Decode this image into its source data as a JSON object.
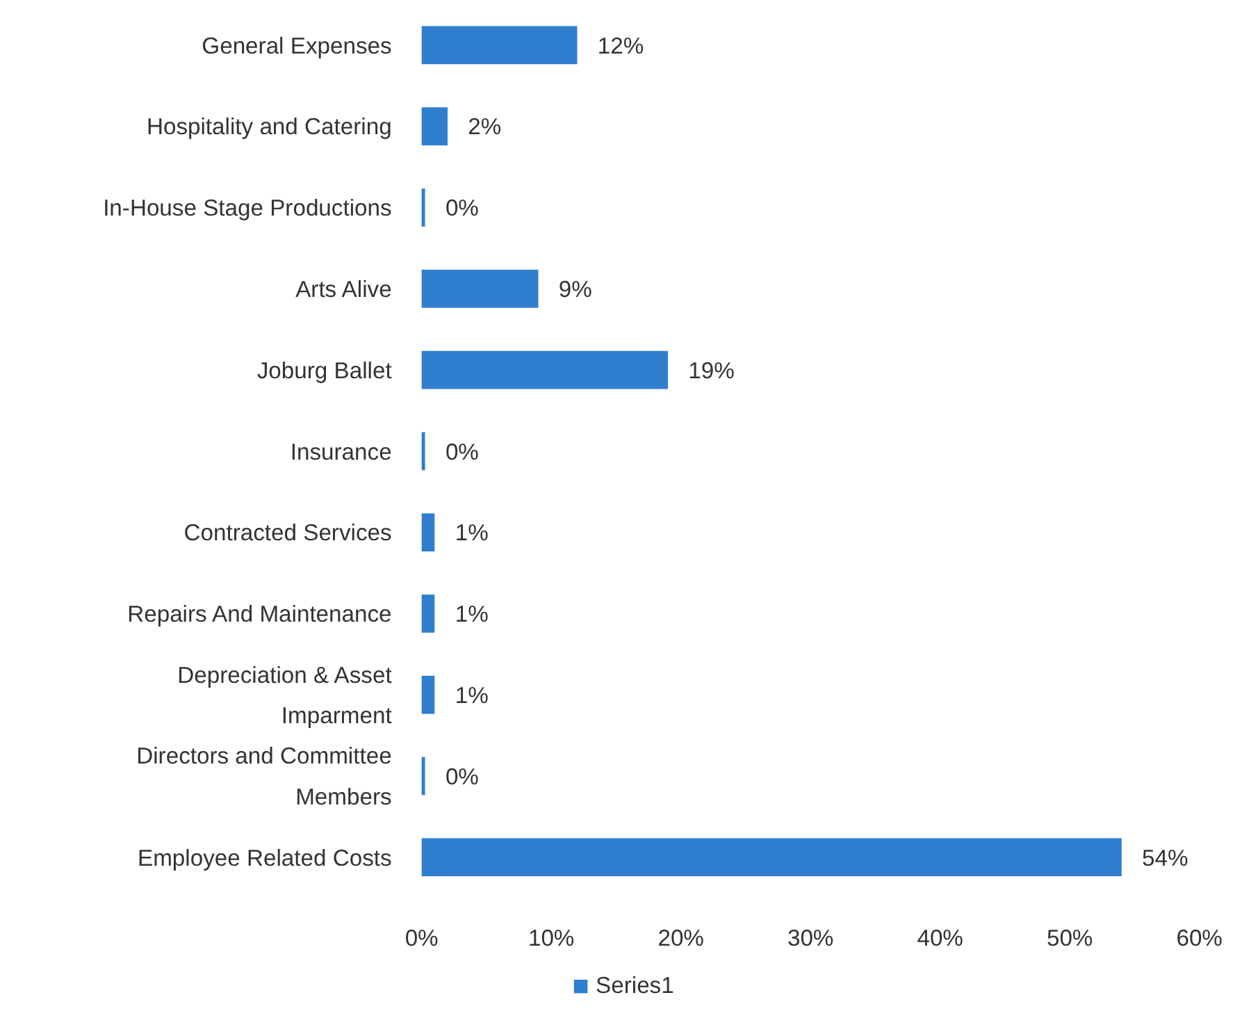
{
  "chart_data": {
    "type": "bar",
    "orientation": "horizontal",
    "categories": [
      "General Expenses",
      "Hospitality and Catering",
      "In-House Stage Productions",
      "Arts Alive",
      "Joburg Ballet",
      "Insurance",
      "Contracted Services",
      "Repairs And Maintenance",
      "Depreciation & Asset Imparment",
      "Directors and Committee Members",
      "Employee Related Costs"
    ],
    "series": [
      {
        "name": "Series1",
        "color": "#2f7ed0",
        "values": [
          12,
          2,
          0,
          9,
          19,
          0,
          1,
          1,
          1,
          0,
          54
        ],
        "value_labels": [
          "12%",
          "2%",
          "0%",
          "9%",
          "19%",
          "0%",
          "1%",
          "1%",
          "1%",
          "0%",
          "54%"
        ]
      }
    ],
    "xlim": [
      0,
      60
    ],
    "xticks": [
      {
        "value": 0,
        "label": "0%"
      },
      {
        "value": 10,
        "label": "10%"
      },
      {
        "value": 20,
        "label": "20%"
      },
      {
        "value": 30,
        "label": "30%"
      },
      {
        "value": 40,
        "label": "40%"
      },
      {
        "value": 50,
        "label": "50%"
      },
      {
        "value": 60,
        "label": "60%"
      }
    ],
    "legend": "bottom",
    "grid": false
  }
}
